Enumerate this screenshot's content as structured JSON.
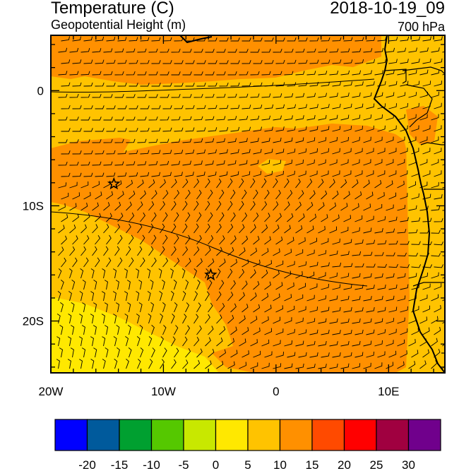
{
  "header": {
    "title": "Temperature (C)",
    "subtitle": "Geopotential Height (m)",
    "datetime": "2018-10-19_09",
    "level": "700 hPa"
  },
  "axes": {
    "x_ticks": [
      {
        "lon": -20,
        "label": "20W"
      },
      {
        "lon": -10,
        "label": "10W"
      },
      {
        "lon": 0,
        "label": "0"
      },
      {
        "lon": 10,
        "label": "10E"
      }
    ],
    "y_ticks": [
      {
        "lat": 0,
        "label": "0"
      },
      {
        "lat": -10,
        "label": "10S"
      },
      {
        "lat": -20,
        "label": "20S"
      }
    ],
    "lon_range": [
      -20,
      15
    ],
    "lat_range": [
      -24.5,
      4.8
    ]
  },
  "markers": [
    {
      "name": "star",
      "lon": -14.4,
      "lat": -8.1
    },
    {
      "name": "star",
      "lon": -5.8,
      "lat": -16.0
    }
  ],
  "colorbar": {
    "colors": [
      "#0000ff",
      "#005a9c",
      "#00a030",
      "#55c800",
      "#c8e800",
      "#ffe800",
      "#ffc300",
      "#ff9000",
      "#ff4a00",
      "#ff0000",
      "#a00040",
      "#70008c"
    ],
    "labels": [
      "-20",
      "-15",
      "-10",
      "-5",
      "0",
      "5",
      "10",
      "15",
      "20",
      "25",
      "30"
    ]
  },
  "fill_colors": {
    "orange": "#ff9000",
    "amber": "#ffc300",
    "yellow": "#ffe800"
  }
}
